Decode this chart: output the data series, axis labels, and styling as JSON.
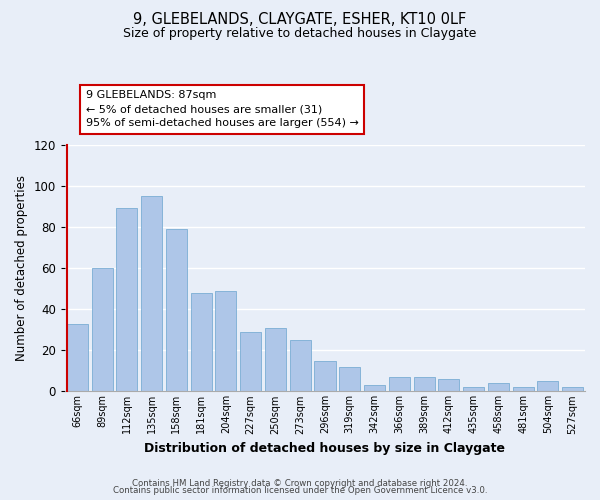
{
  "title": "9, GLEBELANDS, CLAYGATE, ESHER, KT10 0LF",
  "subtitle": "Size of property relative to detached houses in Claygate",
  "xlabel": "Distribution of detached houses by size in Claygate",
  "ylabel": "Number of detached properties",
  "bar_labels": [
    "66sqm",
    "89sqm",
    "112sqm",
    "135sqm",
    "158sqm",
    "181sqm",
    "204sqm",
    "227sqm",
    "250sqm",
    "273sqm",
    "296sqm",
    "319sqm",
    "342sqm",
    "366sqm",
    "389sqm",
    "412sqm",
    "435sqm",
    "458sqm",
    "481sqm",
    "504sqm",
    "527sqm"
  ],
  "bar_values": [
    33,
    60,
    89,
    95,
    79,
    48,
    49,
    29,
    31,
    25,
    15,
    12,
    3,
    7,
    7,
    6,
    2,
    4,
    2,
    5,
    2
  ],
  "bar_color": "#aec6e8",
  "bar_edge_color": "#7aadd4",
  "highlight_color": "#cc0000",
  "annotation_line1": "9 GLEBELANDS: 87sqm",
  "annotation_line2": "← 5% of detached houses are smaller (31)",
  "annotation_line3": "95% of semi-detached houses are larger (554) →",
  "annotation_box_color": "#ffffff",
  "annotation_box_edge_color": "#cc0000",
  "ylim": [
    0,
    120
  ],
  "yticks": [
    0,
    20,
    40,
    60,
    80,
    100,
    120
  ],
  "footer_line1": "Contains HM Land Registry data © Crown copyright and database right 2024.",
  "footer_line2": "Contains public sector information licensed under the Open Government Licence v3.0.",
  "bg_color": "#e8eef8"
}
